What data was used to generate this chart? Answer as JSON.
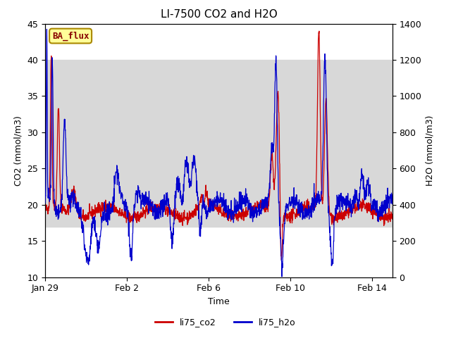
{
  "title": "LI-7500 CO2 and H2O",
  "xlabel": "Time",
  "ylabel_left": "CO2 (mmol/m3)",
  "ylabel_right": "H2O (mmol/m3)",
  "ylim_left": [
    10,
    45
  ],
  "ylim_right": [
    0,
    1400
  ],
  "co2_color": "#cc0000",
  "h2o_color": "#0000cc",
  "legend_labels": [
    "li75_co2",
    "li75_h2o"
  ],
  "ba_flux_label": "BA_flux",
  "ba_flux_bg": "#ffff99",
  "ba_flux_border": "#aa8800",
  "shaded_band": [
    17.0,
    40.0
  ],
  "shaded_color": "#d8d8d8",
  "title_fontsize": 11,
  "axis_fontsize": 9,
  "tick_fontsize": 9,
  "legend_fontsize": 9,
  "xtick_dates": [
    "Jan 29",
    "Feb 2",
    "Feb 6",
    "Feb 10",
    "Feb 14"
  ],
  "xtick_positions_days": [
    0,
    4,
    8,
    12,
    16
  ],
  "xlim": [
    0,
    17
  ]
}
